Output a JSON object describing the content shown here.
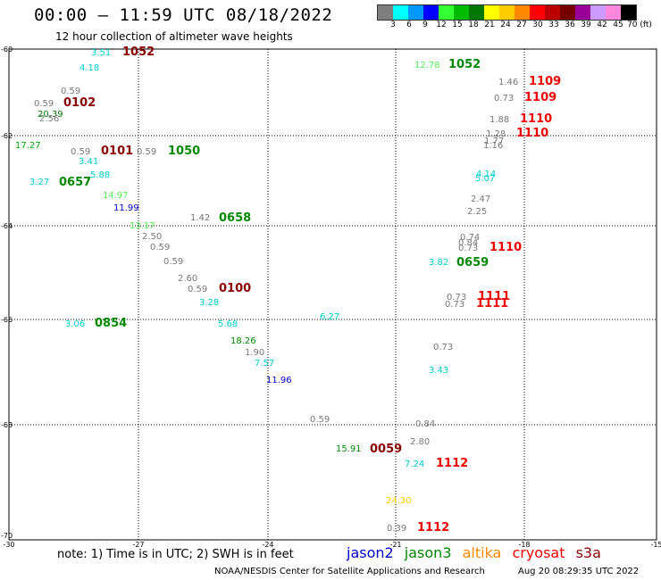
{
  "header": {
    "title": "00:00 – 11:59 UTC 08/18/2022",
    "subtitle": "12 hour collection of altimeter wave heights"
  },
  "scale": {
    "colors": [
      "#7f7f7f",
      "#00ffff",
      "#0099ff",
      "#0000ff",
      "#33ff33",
      "#00bb00",
      "#007700",
      "#ffff00",
      "#ffcc00",
      "#ff8800",
      "#ff0000",
      "#bb0000",
      "#770000",
      "#990099",
      "#cc99ff",
      "#ff88dd",
      "#000000"
    ],
    "labels": [
      "3",
      "6",
      "9",
      "12",
      "15",
      "18",
      "21",
      "24",
      "27",
      "30",
      "33",
      "36",
      "39",
      "42",
      "45",
      "70 (ft)"
    ]
  },
  "axes": {
    "y_labels": [
      "-60",
      "-62",
      "-64",
      "-66",
      "-68",
      "-70"
    ],
    "x_labels": [
      "-30",
      "-27",
      "-24",
      "-21",
      "-18",
      "-15"
    ]
  },
  "points": [
    {
      "t": "3.51",
      "c": "#00cccc"
    },
    {
      "t": "1052",
      "c": "#880000"
    },
    {
      "t": "4.18",
      "c": "#00cccc"
    },
    {
      "t": "0.59",
      "c": "#777777"
    },
    {
      "t": "0.59",
      "c": "#777777"
    },
    {
      "t": "0102",
      "c": "#880000"
    },
    {
      "t": "20.39",
      "c": "#007700"
    },
    {
      "t": "2.56",
      "c": "#777777"
    },
    {
      "t": "17.27",
      "c": "#00aa00"
    },
    {
      "t": "0.59",
      "c": "#777777"
    },
    {
      "t": "0101",
      "c": "#880000"
    },
    {
      "t": "0.59",
      "c": "#777777"
    },
    {
      "t": "1050",
      "c": "#008800"
    },
    {
      "t": "3.41",
      "c": "#00cccc"
    },
    {
      "t": "5.88",
      "c": "#00cccc"
    },
    {
      "t": "3.27",
      "c": "#00cccc"
    },
    {
      "t": "0657",
      "c": "#008800"
    },
    {
      "t": "14.97",
      "c": "#55ee55"
    },
    {
      "t": "11.99",
      "c": "#0000cc"
    },
    {
      "t": "1.42",
      "c": "#777777"
    },
    {
      "t": "0658",
      "c": "#008800"
    },
    {
      "t": "13.17",
      "c": "#55ee55"
    },
    {
      "t": "2.50",
      "c": "#777777"
    },
    {
      "t": "0.59",
      "c": "#777777"
    },
    {
      "t": "0.59",
      "c": "#777777"
    },
    {
      "t": "2.60",
      "c": "#777777"
    },
    {
      "t": "0.59",
      "c": "#777777"
    },
    {
      "t": "0100",
      "c": "#880000"
    },
    {
      "t": "3.28",
      "c": "#00cccc"
    },
    {
      "t": "3.06",
      "c": "#00cccc"
    },
    {
      "t": "0854",
      "c": "#008800"
    },
    {
      "t": "5.68",
      "c": "#00cccc"
    },
    {
      "t": "6.27",
      "c": "#00cccc"
    },
    {
      "t": "18.26",
      "c": "#008800"
    },
    {
      "t": "1.90",
      "c": "#777777"
    },
    {
      "t": "7.57",
      "c": "#00cccc"
    },
    {
      "t": "11.96",
      "c": "#0000cc"
    },
    {
      "t": "0.59",
      "c": "#777777"
    },
    {
      "t": "15.91",
      "c": "#008800"
    },
    {
      "t": "0059",
      "c": "#880000"
    },
    {
      "t": "12.78",
      "c": "#55ee55"
    },
    {
      "t": "1052",
      "c": "#008800"
    },
    {
      "t": "1.46",
      "c": "#777777"
    },
    {
      "t": "1109",
      "c": "#ee0000"
    },
    {
      "t": "0.73",
      "c": "#777777"
    },
    {
      "t": "1109",
      "c": "#ee0000"
    },
    {
      "t": "1.88",
      "c": "#777777"
    },
    {
      "t": "1110",
      "c": "#ee0000"
    },
    {
      "t": "1.28",
      "c": "#777777"
    },
    {
      "t": "1110",
      "c": "#ee0000"
    },
    {
      "t": "1.77",
      "c": "#777777"
    },
    {
      "t": "1.16",
      "c": "#777777"
    },
    {
      "t": "4.14",
      "c": "#00cccc"
    },
    {
      "t": "5.07",
      "c": "#00cccc"
    },
    {
      "t": "2.47",
      "c": "#777777"
    },
    {
      "t": "2.25",
      "c": "#777777"
    },
    {
      "t": "0.74",
      "c": "#777777"
    },
    {
      "t": "0.84",
      "c": "#777777"
    },
    {
      "t": "0.73",
      "c": "#777777"
    },
    {
      "t": "1110",
      "c": "#ee0000"
    },
    {
      "t": "3.82",
      "c": "#00cccc"
    },
    {
      "t": "0659",
      "c": "#008800"
    },
    {
      "t": "0.73",
      "c": "#777777"
    },
    {
      "t": "1111",
      "c": "#ee0000"
    },
    {
      "t": "0.73",
      "c": "#777777"
    },
    {
      "t": "1111",
      "c": "#ee0000"
    },
    {
      "t": "0.73",
      "c": "#777777"
    },
    {
      "t": "3.43",
      "c": "#00cccc"
    },
    {
      "t": "0.84",
      "c": "#777777"
    },
    {
      "t": "2.80",
      "c": "#777777"
    },
    {
      "t": "7.24",
      "c": "#00cccc"
    },
    {
      "t": "1112",
      "c": "#ee0000"
    },
    {
      "t": "24.30",
      "c": "#ffcc00"
    },
    {
      "t": "0.39",
      "c": "#777777"
    },
    {
      "t": "1112",
      "c": "#ee0000"
    }
  ],
  "footer": {
    "note": "note:  1) Time is in UTC;  2) SWH is in feet",
    "legend": [
      {
        "label": "jason2",
        "color": "#0000cc"
      },
      {
        "label": "jason3",
        "color": "#008800"
      },
      {
        "label": "altika",
        "color": "#ff8800"
      },
      {
        "label": "cryosat",
        "color": "#ee0000"
      },
      {
        "label": "s3a",
        "color": "#880000"
      }
    ],
    "credit": "NOAA/NESDIS Center for Satellite Applications and Research",
    "timestamp": "Aug 20 08:29:35 UTC 2022"
  }
}
